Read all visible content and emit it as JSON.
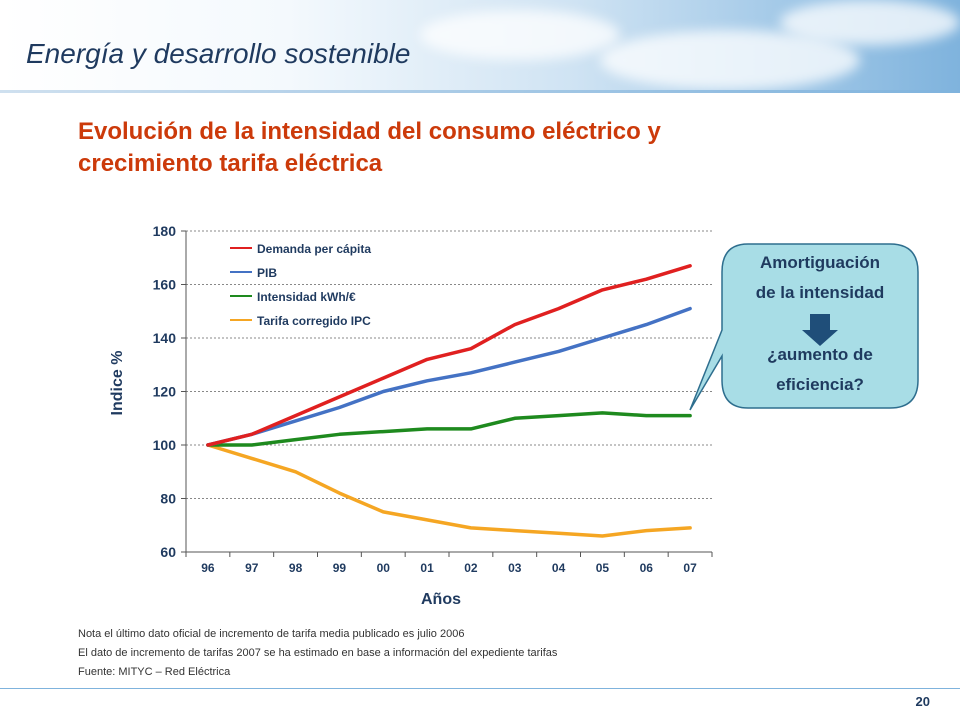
{
  "header": {
    "title": "Energía y desarrollo sostenible"
  },
  "slide": {
    "title_line1": "Evolución de la intensidad del consumo eléctrico y",
    "title_line2": "crecimiento tarifa eléctrica"
  },
  "chart_data": {
    "type": "line",
    "xlabel": "Años",
    "ylabel": "Indice %",
    "categories": [
      "96",
      "97",
      "98",
      "99",
      "00",
      "01",
      "02",
      "03",
      "04",
      "05",
      "06",
      "07"
    ],
    "ylim": [
      60,
      180
    ],
    "yticks": [
      60,
      80,
      100,
      120,
      140,
      160,
      180
    ],
    "grid": "horizontal-dotted",
    "legend_position": "top-left",
    "series": [
      {
        "name": "Demanda per cápita",
        "color": "#e02020",
        "values": [
          100,
          104,
          111,
          118,
          125,
          132,
          136,
          145,
          151,
          158,
          162,
          167
        ]
      },
      {
        "name": "PIB",
        "color": "#4472c4",
        "values": [
          100,
          104,
          109,
          114,
          120,
          124,
          127,
          131,
          135,
          140,
          145,
          151
        ]
      },
      {
        "name": "Intensidad kWh/€",
        "color": "#1e8a1e",
        "values": [
          100,
          100,
          102,
          104,
          105,
          106,
          106,
          110,
          111,
          112,
          111,
          111
        ]
      },
      {
        "name": "Tarifa corregido IPC",
        "color": "#f5a623",
        "values": [
          100,
          95,
          90,
          82,
          75,
          72,
          69,
          68,
          67,
          66,
          68,
          69
        ]
      }
    ]
  },
  "callout": {
    "line1": "Amortiguación",
    "line2": "de la intensidad",
    "line3": "¿aumento de",
    "line4": "eficiencia?"
  },
  "notes": {
    "note1": "Nota el último dato oficial de incremento de tarifa media publicado es julio 2006",
    "note2": "El dato de incremento de tarifas 2007 se ha estimado en base a información del expediente tarifas",
    "source": "Fuente: MITYC  – Red Eléctrica"
  },
  "page_number": "20"
}
